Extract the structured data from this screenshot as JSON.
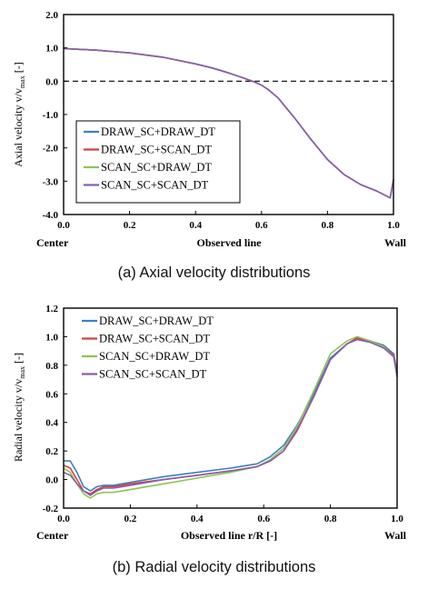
{
  "chart_data": [
    {
      "type": "line",
      "ylabel_main": "Axial velocity v/v",
      "ylabel_sub": "max",
      "ylabel_unit": " [-]",
      "xlabel": "Observed line",
      "x_start_label": "Center",
      "x_end_label": "Wall",
      "caption": "(a)  Axial velocity distributions",
      "xlim": [
        0,
        1
      ],
      "ylim": [
        -4,
        2
      ],
      "xticks": [
        "0.0",
        "0.2",
        "0.4",
        "0.6",
        "0.8",
        "1.0"
      ],
      "yticks": [
        "2.0",
        "1.0",
        "0.0",
        "-1.0",
        "-2.0",
        "-3.0",
        "-4.0"
      ],
      "reference_line": {
        "y": 0,
        "style": "dashed"
      },
      "legend_position": "lower-left",
      "series": [
        {
          "name": "DRAW_SC+DRAW_DT",
          "color": "#3f7fbf",
          "x": [
            0,
            0.1,
            0.2,
            0.3,
            0.4,
            0.45,
            0.5,
            0.55,
            0.58,
            0.6,
            0.62,
            0.65,
            0.7,
            0.75,
            0.8,
            0.85,
            0.9,
            0.95,
            0.98,
            0.99,
            1.0
          ],
          "y": [
            0.98,
            0.93,
            0.85,
            0.72,
            0.52,
            0.4,
            0.25,
            0.08,
            -0.03,
            -0.12,
            -0.25,
            -0.5,
            -1.1,
            -1.75,
            -2.35,
            -2.8,
            -3.1,
            -3.3,
            -3.45,
            -3.5,
            -2.95
          ]
        },
        {
          "name": "DRAW_SC+SCAN_DT",
          "color": "#d04040",
          "x": [
            0,
            0.1,
            0.2,
            0.3,
            0.4,
            0.45,
            0.5,
            0.55,
            0.58,
            0.6,
            0.62,
            0.65,
            0.7,
            0.75,
            0.8,
            0.85,
            0.9,
            0.95,
            0.98,
            0.99,
            1.0
          ],
          "y": [
            0.98,
            0.93,
            0.85,
            0.72,
            0.52,
            0.4,
            0.25,
            0.08,
            -0.03,
            -0.12,
            -0.25,
            -0.5,
            -1.1,
            -1.75,
            -2.35,
            -2.8,
            -3.1,
            -3.3,
            -3.45,
            -3.5,
            -2.95
          ]
        },
        {
          "name": "SCAN_SC+DRAW_DT",
          "color": "#8cc454",
          "x": [
            0,
            0.1,
            0.2,
            0.3,
            0.4,
            0.45,
            0.5,
            0.55,
            0.58,
            0.6,
            0.62,
            0.65,
            0.7,
            0.75,
            0.8,
            0.85,
            0.9,
            0.95,
            0.98,
            0.99,
            1.0
          ],
          "y": [
            0.98,
            0.93,
            0.85,
            0.72,
            0.52,
            0.4,
            0.25,
            0.08,
            -0.03,
            -0.12,
            -0.25,
            -0.5,
            -1.1,
            -1.75,
            -2.35,
            -2.8,
            -3.1,
            -3.3,
            -3.45,
            -3.5,
            -2.95
          ]
        },
        {
          "name": "SCAN_SC+SCAN_DT",
          "color": "#8a5db0",
          "x": [
            0,
            0.1,
            0.2,
            0.3,
            0.4,
            0.45,
            0.5,
            0.55,
            0.58,
            0.6,
            0.62,
            0.65,
            0.7,
            0.75,
            0.8,
            0.85,
            0.9,
            0.95,
            0.98,
            0.99,
            1.0
          ],
          "y": [
            0.98,
            0.93,
            0.85,
            0.72,
            0.52,
            0.4,
            0.25,
            0.08,
            -0.03,
            -0.12,
            -0.25,
            -0.5,
            -1.1,
            -1.75,
            -2.35,
            -2.8,
            -3.1,
            -3.3,
            -3.45,
            -3.5,
            -2.95
          ]
        }
      ]
    },
    {
      "type": "line",
      "ylabel_main": "Radial velocity v/v",
      "ylabel_sub": "max",
      "ylabel_unit": " [-]",
      "xlabel": "Observed line r/R [-]",
      "x_start_label": "Center",
      "x_end_label": "Wall",
      "caption": "(b)  Radial velocity distributions",
      "xlim": [
        0,
        1
      ],
      "ylim": [
        -0.2,
        1.2
      ],
      "xticks": [
        "0.0",
        "0.2",
        "0.4",
        "0.6",
        "0.8",
        "1.0"
      ],
      "yticks": [
        "1.2",
        "1.0",
        "0.8",
        "0.6",
        "0.4",
        "0.2",
        "0.0",
        "-0.2"
      ],
      "legend_position": "top-left",
      "series": [
        {
          "name": "DRAW_SC+DRAW_DT",
          "color": "#3f7fbf",
          "x": [
            0,
            0.02,
            0.04,
            0.06,
            0.08,
            0.1,
            0.12,
            0.15,
            0.2,
            0.3,
            0.4,
            0.5,
            0.58,
            0.62,
            0.66,
            0.7,
            0.75,
            0.8,
            0.85,
            0.88,
            0.92,
            0.96,
            0.99,
            1.0
          ],
          "y": [
            0.13,
            0.13,
            0.05,
            -0.05,
            -0.08,
            -0.05,
            -0.04,
            -0.04,
            -0.02,
            0.02,
            0.05,
            0.08,
            0.11,
            0.16,
            0.24,
            0.38,
            0.6,
            0.85,
            0.95,
            0.99,
            0.97,
            0.94,
            0.88,
            0.75
          ]
        },
        {
          "name": "DRAW_SC+SCAN_DT",
          "color": "#d04040",
          "x": [
            0,
            0.02,
            0.04,
            0.06,
            0.08,
            0.1,
            0.12,
            0.15,
            0.2,
            0.3,
            0.4,
            0.5,
            0.58,
            0.62,
            0.66,
            0.7,
            0.75,
            0.8,
            0.85,
            0.88,
            0.92,
            0.96,
            0.99,
            1.0
          ],
          "y": [
            0.1,
            0.08,
            0.0,
            -0.08,
            -0.1,
            -0.07,
            -0.05,
            -0.05,
            -0.03,
            0.0,
            0.03,
            0.06,
            0.09,
            0.13,
            0.2,
            0.34,
            0.58,
            0.84,
            0.95,
            0.99,
            0.97,
            0.93,
            0.87,
            0.74
          ]
        },
        {
          "name": "SCAN_SC+DRAW_DT",
          "color": "#8cc454",
          "x": [
            0,
            0.02,
            0.04,
            0.06,
            0.08,
            0.1,
            0.12,
            0.15,
            0.2,
            0.3,
            0.4,
            0.5,
            0.58,
            0.62,
            0.66,
            0.7,
            0.75,
            0.8,
            0.85,
            0.88,
            0.92,
            0.96,
            0.99,
            1.0
          ],
          "y": [
            0.08,
            0.05,
            -0.03,
            -0.1,
            -0.13,
            -0.1,
            -0.09,
            -0.09,
            -0.07,
            -0.03,
            0.01,
            0.05,
            0.09,
            0.14,
            0.22,
            0.37,
            0.62,
            0.88,
            0.97,
            1.0,
            0.97,
            0.93,
            0.86,
            0.72
          ]
        },
        {
          "name": "SCAN_SC+SCAN_DT",
          "color": "#8a5db0",
          "x": [
            0,
            0.02,
            0.04,
            0.06,
            0.08,
            0.1,
            0.12,
            0.15,
            0.2,
            0.3,
            0.4,
            0.5,
            0.58,
            0.62,
            0.66,
            0.7,
            0.75,
            0.8,
            0.85,
            0.88,
            0.92,
            0.96,
            0.99,
            1.0
          ],
          "y": [
            0.05,
            0.03,
            -0.03,
            -0.08,
            -0.11,
            -0.08,
            -0.06,
            -0.06,
            -0.04,
            0.0,
            0.03,
            0.06,
            0.09,
            0.13,
            0.2,
            0.35,
            0.58,
            0.84,
            0.95,
            0.98,
            0.96,
            0.92,
            0.86,
            0.72
          ]
        }
      ]
    }
  ]
}
